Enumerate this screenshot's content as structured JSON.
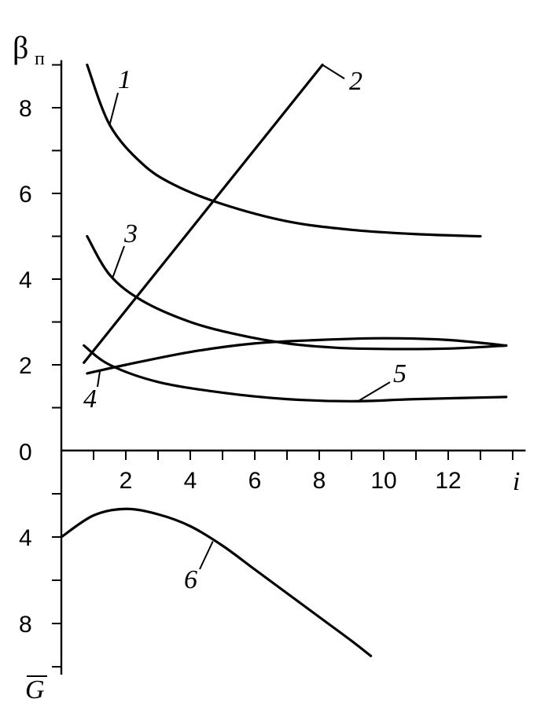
{
  "chart_data": [
    {
      "type": "line",
      "title": "",
      "xlabel": "i",
      "ylabel_symbol": "β",
      "ylabel_subscript": "п",
      "x_ticks": [
        "2",
        "4",
        "6",
        "8",
        "10",
        "12"
      ],
      "y_ticks": [
        "0",
        "2",
        "4",
        "6",
        "8"
      ],
      "xlim": [
        0,
        14
      ],
      "ylim": [
        0,
        9
      ],
      "grid": false,
      "series": [
        {
          "name": "1",
          "x": [
            0.8,
            1.5,
            2.5,
            3.5,
            5,
            7,
            9,
            11,
            13
          ],
          "y": [
            9.0,
            7.6,
            6.7,
            6.2,
            5.75,
            5.35,
            5.15,
            5.05,
            5.0
          ]
        },
        {
          "name": "2",
          "x": [
            0.7,
            8.1
          ],
          "y": [
            2.05,
            9.0
          ]
        },
        {
          "name": "3",
          "x": [
            0.8,
            1.5,
            2.5,
            4,
            5.5,
            7,
            8.5,
            10,
            12,
            13.8
          ],
          "y": [
            5.0,
            4.1,
            3.5,
            3.0,
            2.7,
            2.5,
            2.4,
            2.37,
            2.38,
            2.45
          ]
        },
        {
          "name": "4",
          "x": [
            0.8,
            2,
            4,
            6,
            8,
            10,
            12,
            13.8
          ],
          "y": [
            1.8,
            2.0,
            2.3,
            2.5,
            2.58,
            2.62,
            2.58,
            2.45
          ]
        },
        {
          "name": "5",
          "x": [
            0.7,
            1.5,
            3,
            5,
            7,
            9,
            11,
            13.8
          ],
          "y": [
            2.45,
            2.0,
            1.6,
            1.35,
            1.2,
            1.15,
            1.2,
            1.25
          ]
        }
      ]
    },
    {
      "type": "line",
      "title": "",
      "ylabel": "G",
      "y_ticks": [
        "4",
        "8"
      ],
      "y_inverted": true,
      "xlim": [
        0,
        14
      ],
      "ylim": [
        0,
        10
      ],
      "grid": false,
      "series": [
        {
          "name": "6",
          "x": [
            0,
            1,
            2,
            3,
            4,
            5,
            6,
            7,
            8,
            9,
            9.6
          ],
          "y": [
            4.0,
            3.0,
            2.7,
            2.95,
            3.5,
            4.4,
            5.5,
            6.6,
            7.7,
            8.8,
            9.5
          ]
        }
      ]
    }
  ]
}
